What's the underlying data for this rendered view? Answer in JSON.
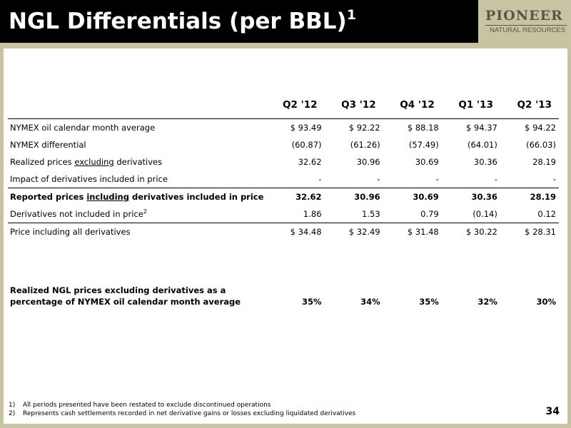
{
  "header": {
    "title": "NGL Differentials (per BBL)",
    "title_sup": "1"
  },
  "logo": {
    "main": "PIONEER",
    "sub": "NATURAL RESOURCES"
  },
  "table": {
    "columns": [
      "Q2 '12",
      "Q3 '12",
      "Q4 '12",
      "Q1 '13",
      "Q2 '13"
    ],
    "rows": [
      {
        "label": "NYMEX oil calendar month average",
        "values": [
          "$ 93.49",
          "$ 92.22",
          "$ 88.18",
          "$ 94.37",
          "$ 94.22"
        ]
      },
      {
        "label": "NYMEX differential",
        "values": [
          "(60.87)",
          "(61.26)",
          "(57.49)",
          "(64.01)",
          "(66.03)"
        ]
      },
      {
        "label_pre": "Realized prices ",
        "label_u": "excluding",
        "label_post": " derivatives",
        "values": [
          "32.62",
          "30.96",
          "30.69",
          "30.36",
          "28.19"
        ]
      },
      {
        "label": "Impact of derivatives included in price",
        "values": [
          "-",
          "-",
          "-",
          "-",
          "-"
        ]
      },
      {
        "label_pre": "Reported prices ",
        "label_u": "including",
        "label_post": " derivatives included in price",
        "values": [
          "32.62",
          "30.96",
          "30.69",
          "30.36",
          "28.19"
        ]
      },
      {
        "label": "Derivatives not included in price",
        "label_sup": "2",
        "values": [
          "1.86",
          "1.53",
          "0.79",
          "(0.14)",
          "0.12"
        ]
      },
      {
        "label": "Price including all derivatives",
        "values": [
          "$ 34.48",
          "$ 32.49",
          "$ 31.48",
          "$ 30.22",
          "$ 28.31"
        ]
      }
    ],
    "summary": {
      "label_line1": "Realized NGL prices excluding derivatives as a",
      "label_line2": "percentage of NYMEX oil calendar month average",
      "values": [
        "35%",
        "34%",
        "35%",
        "32%",
        "30%"
      ]
    }
  },
  "footnotes": [
    {
      "num": "1)",
      "text": "All periods presented have been restated to exclude discontinued operations"
    },
    {
      "num": "2)",
      "text": "Represents cash settlements recorded in net derivative gains or losses excluding liquidated derivatives"
    }
  ],
  "page_number": "34"
}
